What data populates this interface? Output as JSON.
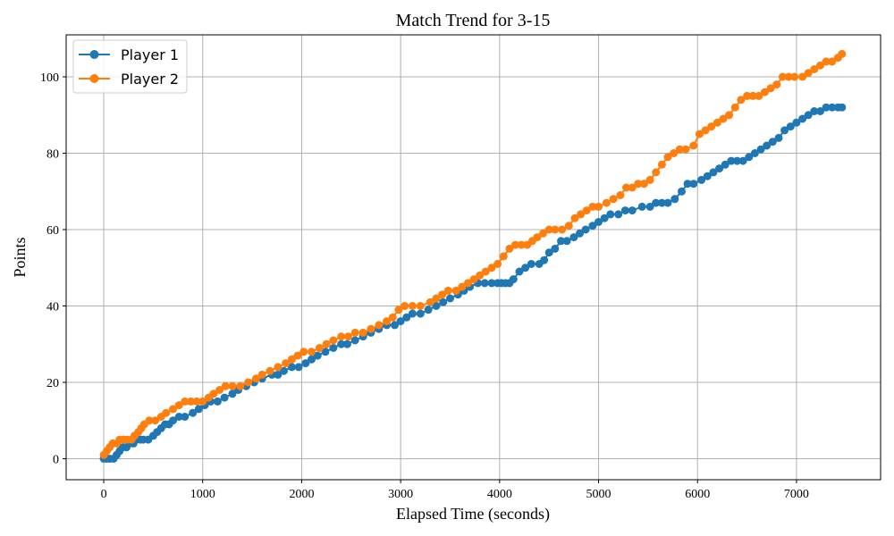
{
  "chart_data": {
    "type": "line",
    "title": "Match Trend for 3-15",
    "xlabel": "Elapsed Time (seconds)",
    "ylabel": "Points",
    "xlim": [
      -380,
      7850
    ],
    "ylim": [
      -5.5,
      111
    ],
    "xticks": [
      0,
      1000,
      2000,
      3000,
      4000,
      5000,
      6000,
      7000
    ],
    "yticks": [
      0,
      20,
      40,
      60,
      80,
      100
    ],
    "grid": true,
    "legend_position": "top-left",
    "series": [
      {
        "name": "Player 1",
        "color": "#1f77b4",
        "points": [
          [
            0,
            0
          ],
          [
            30,
            0
          ],
          [
            60,
            0
          ],
          [
            100,
            0
          ],
          [
            130,
            1
          ],
          [
            160,
            2
          ],
          [
            190,
            3
          ],
          [
            230,
            3
          ],
          [
            260,
            4
          ],
          [
            300,
            4
          ],
          [
            330,
            5
          ],
          [
            370,
            5
          ],
          [
            400,
            5
          ],
          [
            450,
            5
          ],
          [
            500,
            6
          ],
          [
            540,
            7
          ],
          [
            580,
            8
          ],
          [
            620,
            9
          ],
          [
            660,
            9
          ],
          [
            700,
            10
          ],
          [
            760,
            11
          ],
          [
            820,
            11
          ],
          [
            900,
            12
          ],
          [
            960,
            13
          ],
          [
            1020,
            14
          ],
          [
            1080,
            15
          ],
          [
            1150,
            15
          ],
          [
            1220,
            16
          ],
          [
            1300,
            17
          ],
          [
            1360,
            18
          ],
          [
            1440,
            19
          ],
          [
            1520,
            20
          ],
          [
            1600,
            21
          ],
          [
            1700,
            22
          ],
          [
            1760,
            22
          ],
          [
            1820,
            23
          ],
          [
            1900,
            24
          ],
          [
            1970,
            24
          ],
          [
            2040,
            25
          ],
          [
            2100,
            26
          ],
          [
            2160,
            27
          ],
          [
            2240,
            28
          ],
          [
            2320,
            29
          ],
          [
            2400,
            30
          ],
          [
            2460,
            30
          ],
          [
            2540,
            31
          ],
          [
            2620,
            32
          ],
          [
            2700,
            33
          ],
          [
            2780,
            34
          ],
          [
            2860,
            35
          ],
          [
            2940,
            35
          ],
          [
            3000,
            36
          ],
          [
            3060,
            37
          ],
          [
            3120,
            38
          ],
          [
            3200,
            38
          ],
          [
            3280,
            39
          ],
          [
            3360,
            40
          ],
          [
            3430,
            41
          ],
          [
            3500,
            42
          ],
          [
            3580,
            43
          ],
          [
            3640,
            44
          ],
          [
            3700,
            45
          ],
          [
            3780,
            46
          ],
          [
            3850,
            46
          ],
          [
            3920,
            46
          ],
          [
            3980,
            46
          ],
          [
            4020,
            46
          ],
          [
            4060,
            46
          ],
          [
            4100,
            46
          ],
          [
            4140,
            47
          ],
          [
            4200,
            49
          ],
          [
            4260,
            50
          ],
          [
            4320,
            51
          ],
          [
            4400,
            51
          ],
          [
            4450,
            52
          ],
          [
            4500,
            54
          ],
          [
            4560,
            55
          ],
          [
            4620,
            57
          ],
          [
            4680,
            57
          ],
          [
            4750,
            58
          ],
          [
            4810,
            59
          ],
          [
            4870,
            60
          ],
          [
            4940,
            61
          ],
          [
            5000,
            62
          ],
          [
            5060,
            63
          ],
          [
            5120,
            64
          ],
          [
            5200,
            64
          ],
          [
            5270,
            65
          ],
          [
            5340,
            65
          ],
          [
            5440,
            66
          ],
          [
            5520,
            66
          ],
          [
            5580,
            67
          ],
          [
            5640,
            67
          ],
          [
            5700,
            67
          ],
          [
            5770,
            68
          ],
          [
            5840,
            70
          ],
          [
            5900,
            72
          ],
          [
            5960,
            72
          ],
          [
            6040,
            73
          ],
          [
            6100,
            74
          ],
          [
            6160,
            75
          ],
          [
            6220,
            76
          ],
          [
            6280,
            77
          ],
          [
            6340,
            78
          ],
          [
            6400,
            78
          ],
          [
            6460,
            78
          ],
          [
            6520,
            79
          ],
          [
            6580,
            80
          ],
          [
            6640,
            81
          ],
          [
            6700,
            82
          ],
          [
            6760,
            83
          ],
          [
            6820,
            84
          ],
          [
            6880,
            86
          ],
          [
            6940,
            87
          ],
          [
            7000,
            88
          ],
          [
            7060,
            89
          ],
          [
            7120,
            90
          ],
          [
            7180,
            91
          ],
          [
            7240,
            91
          ],
          [
            7300,
            92
          ],
          [
            7360,
            92
          ],
          [
            7420,
            92
          ],
          [
            7460,
            92
          ]
        ]
      },
      {
        "name": "Player 2",
        "color": "#ff7f0e",
        "points": [
          [
            0,
            1
          ],
          [
            30,
            2
          ],
          [
            60,
            3
          ],
          [
            90,
            4
          ],
          [
            130,
            4
          ],
          [
            160,
            5
          ],
          [
            200,
            5
          ],
          [
            240,
            5
          ],
          [
            280,
            5
          ],
          [
            310,
            6
          ],
          [
            350,
            7
          ],
          [
            380,
            8
          ],
          [
            410,
            9
          ],
          [
            460,
            10
          ],
          [
            520,
            10
          ],
          [
            580,
            11
          ],
          [
            630,
            12
          ],
          [
            700,
            13
          ],
          [
            760,
            14
          ],
          [
            820,
            15
          ],
          [
            880,
            15
          ],
          [
            940,
            15
          ],
          [
            1000,
            15
          ],
          [
            1060,
            16
          ],
          [
            1110,
            17
          ],
          [
            1170,
            18
          ],
          [
            1230,
            19
          ],
          [
            1300,
            19
          ],
          [
            1380,
            19
          ],
          [
            1460,
            20
          ],
          [
            1540,
            21
          ],
          [
            1600,
            22
          ],
          [
            1680,
            23
          ],
          [
            1760,
            24
          ],
          [
            1840,
            25
          ],
          [
            1900,
            26
          ],
          [
            1960,
            27
          ],
          [
            2020,
            28
          ],
          [
            2100,
            28
          ],
          [
            2180,
            29
          ],
          [
            2250,
            30
          ],
          [
            2320,
            31
          ],
          [
            2400,
            32
          ],
          [
            2470,
            32
          ],
          [
            2540,
            33
          ],
          [
            2620,
            33
          ],
          [
            2700,
            34
          ],
          [
            2780,
            35
          ],
          [
            2860,
            36
          ],
          [
            2920,
            37
          ],
          [
            2980,
            39
          ],
          [
            3040,
            40
          ],
          [
            3120,
            40
          ],
          [
            3200,
            40
          ],
          [
            3300,
            41
          ],
          [
            3360,
            42
          ],
          [
            3420,
            43
          ],
          [
            3480,
            44
          ],
          [
            3560,
            44
          ],
          [
            3620,
            45
          ],
          [
            3680,
            46
          ],
          [
            3740,
            47
          ],
          [
            3800,
            48
          ],
          [
            3860,
            49
          ],
          [
            3920,
            50
          ],
          [
            3980,
            51
          ],
          [
            4040,
            53
          ],
          [
            4100,
            55
          ],
          [
            4160,
            56
          ],
          [
            4220,
            56
          ],
          [
            4280,
            56
          ],
          [
            4330,
            57
          ],
          [
            4380,
            58
          ],
          [
            4440,
            59
          ],
          [
            4500,
            60
          ],
          [
            4560,
            60
          ],
          [
            4630,
            60
          ],
          [
            4700,
            61
          ],
          [
            4760,
            63
          ],
          [
            4820,
            64
          ],
          [
            4880,
            65
          ],
          [
            4940,
            66
          ],
          [
            5000,
            66
          ],
          [
            5080,
            67
          ],
          [
            5150,
            68
          ],
          [
            5220,
            69
          ],
          [
            5280,
            71
          ],
          [
            5340,
            71
          ],
          [
            5400,
            72
          ],
          [
            5460,
            72
          ],
          [
            5520,
            73
          ],
          [
            5580,
            75
          ],
          [
            5640,
            77
          ],
          [
            5700,
            79
          ],
          [
            5760,
            80
          ],
          [
            5820,
            81
          ],
          [
            5880,
            81
          ],
          [
            5960,
            82
          ],
          [
            6020,
            85
          ],
          [
            6080,
            86
          ],
          [
            6140,
            87
          ],
          [
            6200,
            88
          ],
          [
            6260,
            89
          ],
          [
            6320,
            90
          ],
          [
            6380,
            92
          ],
          [
            6440,
            94
          ],
          [
            6500,
            95
          ],
          [
            6560,
            95
          ],
          [
            6620,
            95
          ],
          [
            6680,
            96
          ],
          [
            6740,
            97
          ],
          [
            6800,
            98
          ],
          [
            6860,
            100
          ],
          [
            6920,
            100
          ],
          [
            6980,
            100
          ],
          [
            7060,
            100
          ],
          [
            7120,
            101
          ],
          [
            7180,
            102
          ],
          [
            7240,
            103
          ],
          [
            7300,
            104
          ],
          [
            7360,
            104
          ],
          [
            7420,
            105
          ],
          [
            7460,
            106
          ]
        ]
      }
    ]
  }
}
